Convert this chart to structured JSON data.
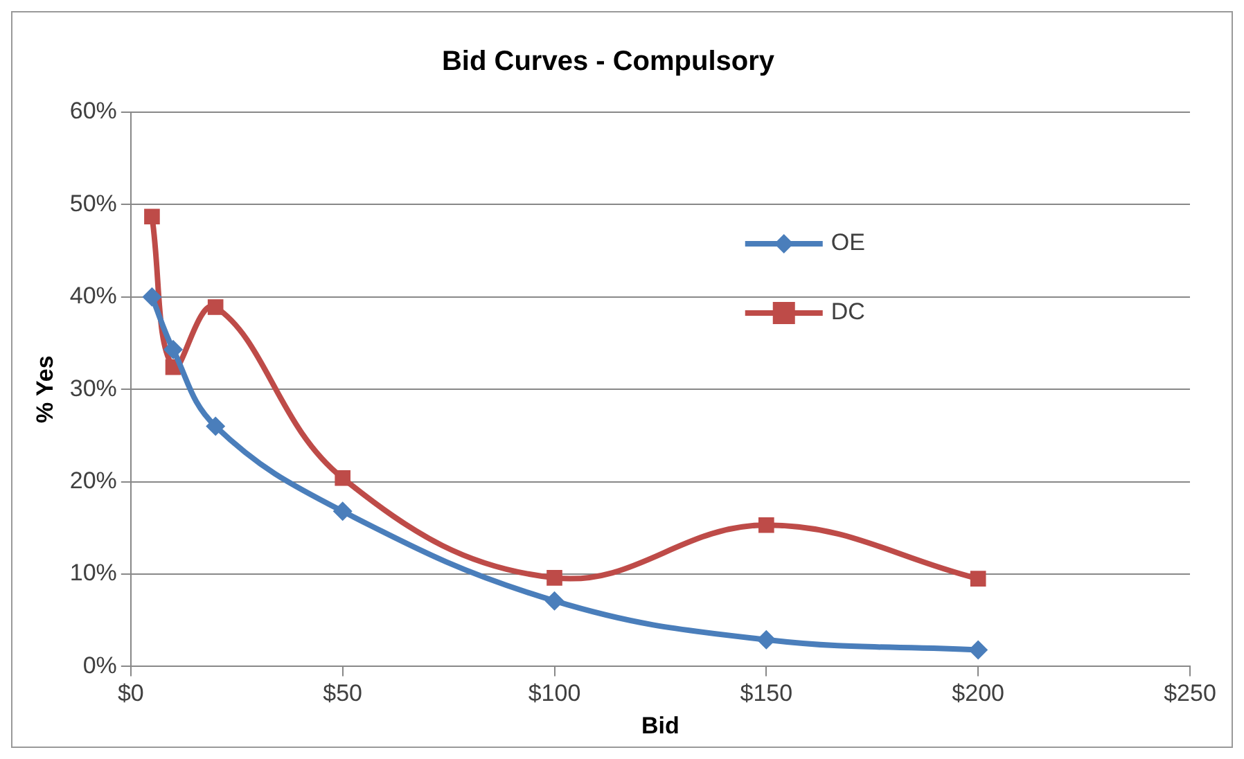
{
  "chart_data": {
    "type": "line",
    "title": "Bid Curves - Compulsory",
    "xlabel": "Bid",
    "ylabel": "% Yes",
    "x": [
      5,
      10,
      20,
      50,
      100,
      150,
      200
    ],
    "series": [
      {
        "name": "OE",
        "color": "#4a7ebb",
        "marker": "diamond",
        "values": [
          40.0,
          34.3,
          26.0,
          16.8,
          7.1,
          2.9,
          1.8
        ]
      },
      {
        "name": "DC",
        "color": "#be4b48",
        "marker": "square",
        "values": [
          48.7,
          32.4,
          38.9,
          20.4,
          9.6,
          15.3,
          9.5
        ]
      }
    ],
    "xlim": [
      0,
      250
    ],
    "xticks": [
      {
        "value": 0,
        "label": "$0"
      },
      {
        "value": 50,
        "label": "$50"
      },
      {
        "value": 100,
        "label": "$100"
      },
      {
        "value": 150,
        "label": "$150"
      },
      {
        "value": 200,
        "label": "$200"
      },
      {
        "value": 250,
        "label": "$250"
      }
    ],
    "ylim": [
      0,
      60
    ],
    "yticks": [
      {
        "value": 0,
        "label": "0%"
      },
      {
        "value": 10,
        "label": "10%"
      },
      {
        "value": 20,
        "label": "20%"
      },
      {
        "value": 30,
        "label": "30%"
      },
      {
        "value": 40,
        "label": "40%"
      },
      {
        "value": 50,
        "label": "50%"
      },
      {
        "value": 60,
        "label": "60%"
      }
    ],
    "grid": "y",
    "legend": "top right"
  }
}
